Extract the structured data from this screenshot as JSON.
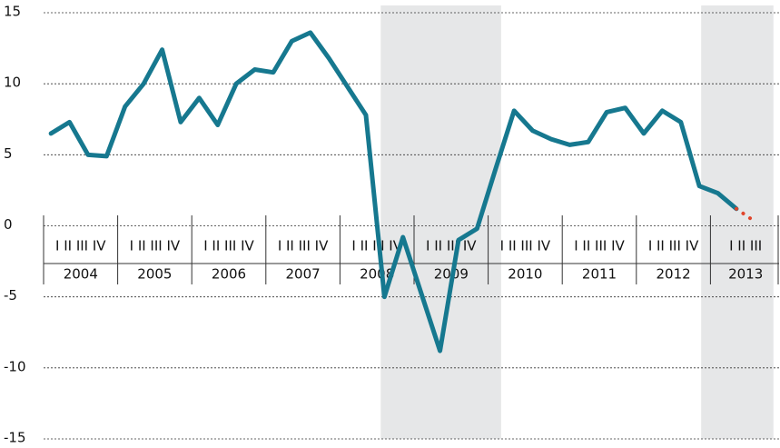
{
  "chart_data": {
    "type": "line",
    "years": [
      {
        "label": "2004",
        "quarters": "I II III IV"
      },
      {
        "label": "2005",
        "quarters": "I II III IV"
      },
      {
        "label": "2006",
        "quarters": "I II III IV"
      },
      {
        "label": "2007",
        "quarters": "I II III IV"
      },
      {
        "label": "2008",
        "quarters": "I II III IV"
      },
      {
        "label": "2009",
        "quarters": "I II III IV"
      },
      {
        "label": "2010",
        "quarters": "I II III IV"
      },
      {
        "label": "2011",
        "quarters": "I II III IV"
      },
      {
        "label": "2012",
        "quarters": "I II III IV"
      },
      {
        "label": "2013",
        "quarters": "I II III"
      }
    ],
    "series": [
      {
        "color": "#16788f",
        "style": "solid",
        "values": [
          6.5,
          7.3,
          5.0,
          4.9,
          8.4,
          10.0,
          12.4,
          7.3,
          9.0,
          7.1,
          10.0,
          11.0,
          10.8,
          13.0,
          13.6,
          11.8,
          9.8,
          7.8,
          -5.0,
          -0.8,
          -4.8,
          -8.8,
          -1.0,
          -0.2,
          4.0,
          8.1,
          6.7,
          6.1,
          5.7,
          5.9,
          8.0,
          8.3,
          6.5,
          8.1,
          7.3,
          2.8,
          2.3,
          1.2,
          null
        ]
      },
      {
        "color": "#e0452b",
        "style": "dotted",
        "values": [
          null,
          null,
          null,
          null,
          null,
          null,
          null,
          null,
          null,
          null,
          null,
          null,
          null,
          null,
          null,
          null,
          null,
          null,
          null,
          null,
          null,
          null,
          null,
          null,
          null,
          null,
          null,
          null,
          null,
          null,
          null,
          null,
          null,
          null,
          null,
          null,
          null,
          1.2,
          0.3
        ]
      }
    ],
    "shaded": [
      {
        "from": 18.2,
        "to": 24.7
      },
      {
        "from": 35.5,
        "to": 39.4
      }
    ],
    "shade_color": "#e6e7e8",
    "ylim": [
      -15,
      15
    ],
    "yticks": [
      -15,
      -10,
      -5,
      0,
      5,
      10,
      15
    ],
    "grid": true
  }
}
